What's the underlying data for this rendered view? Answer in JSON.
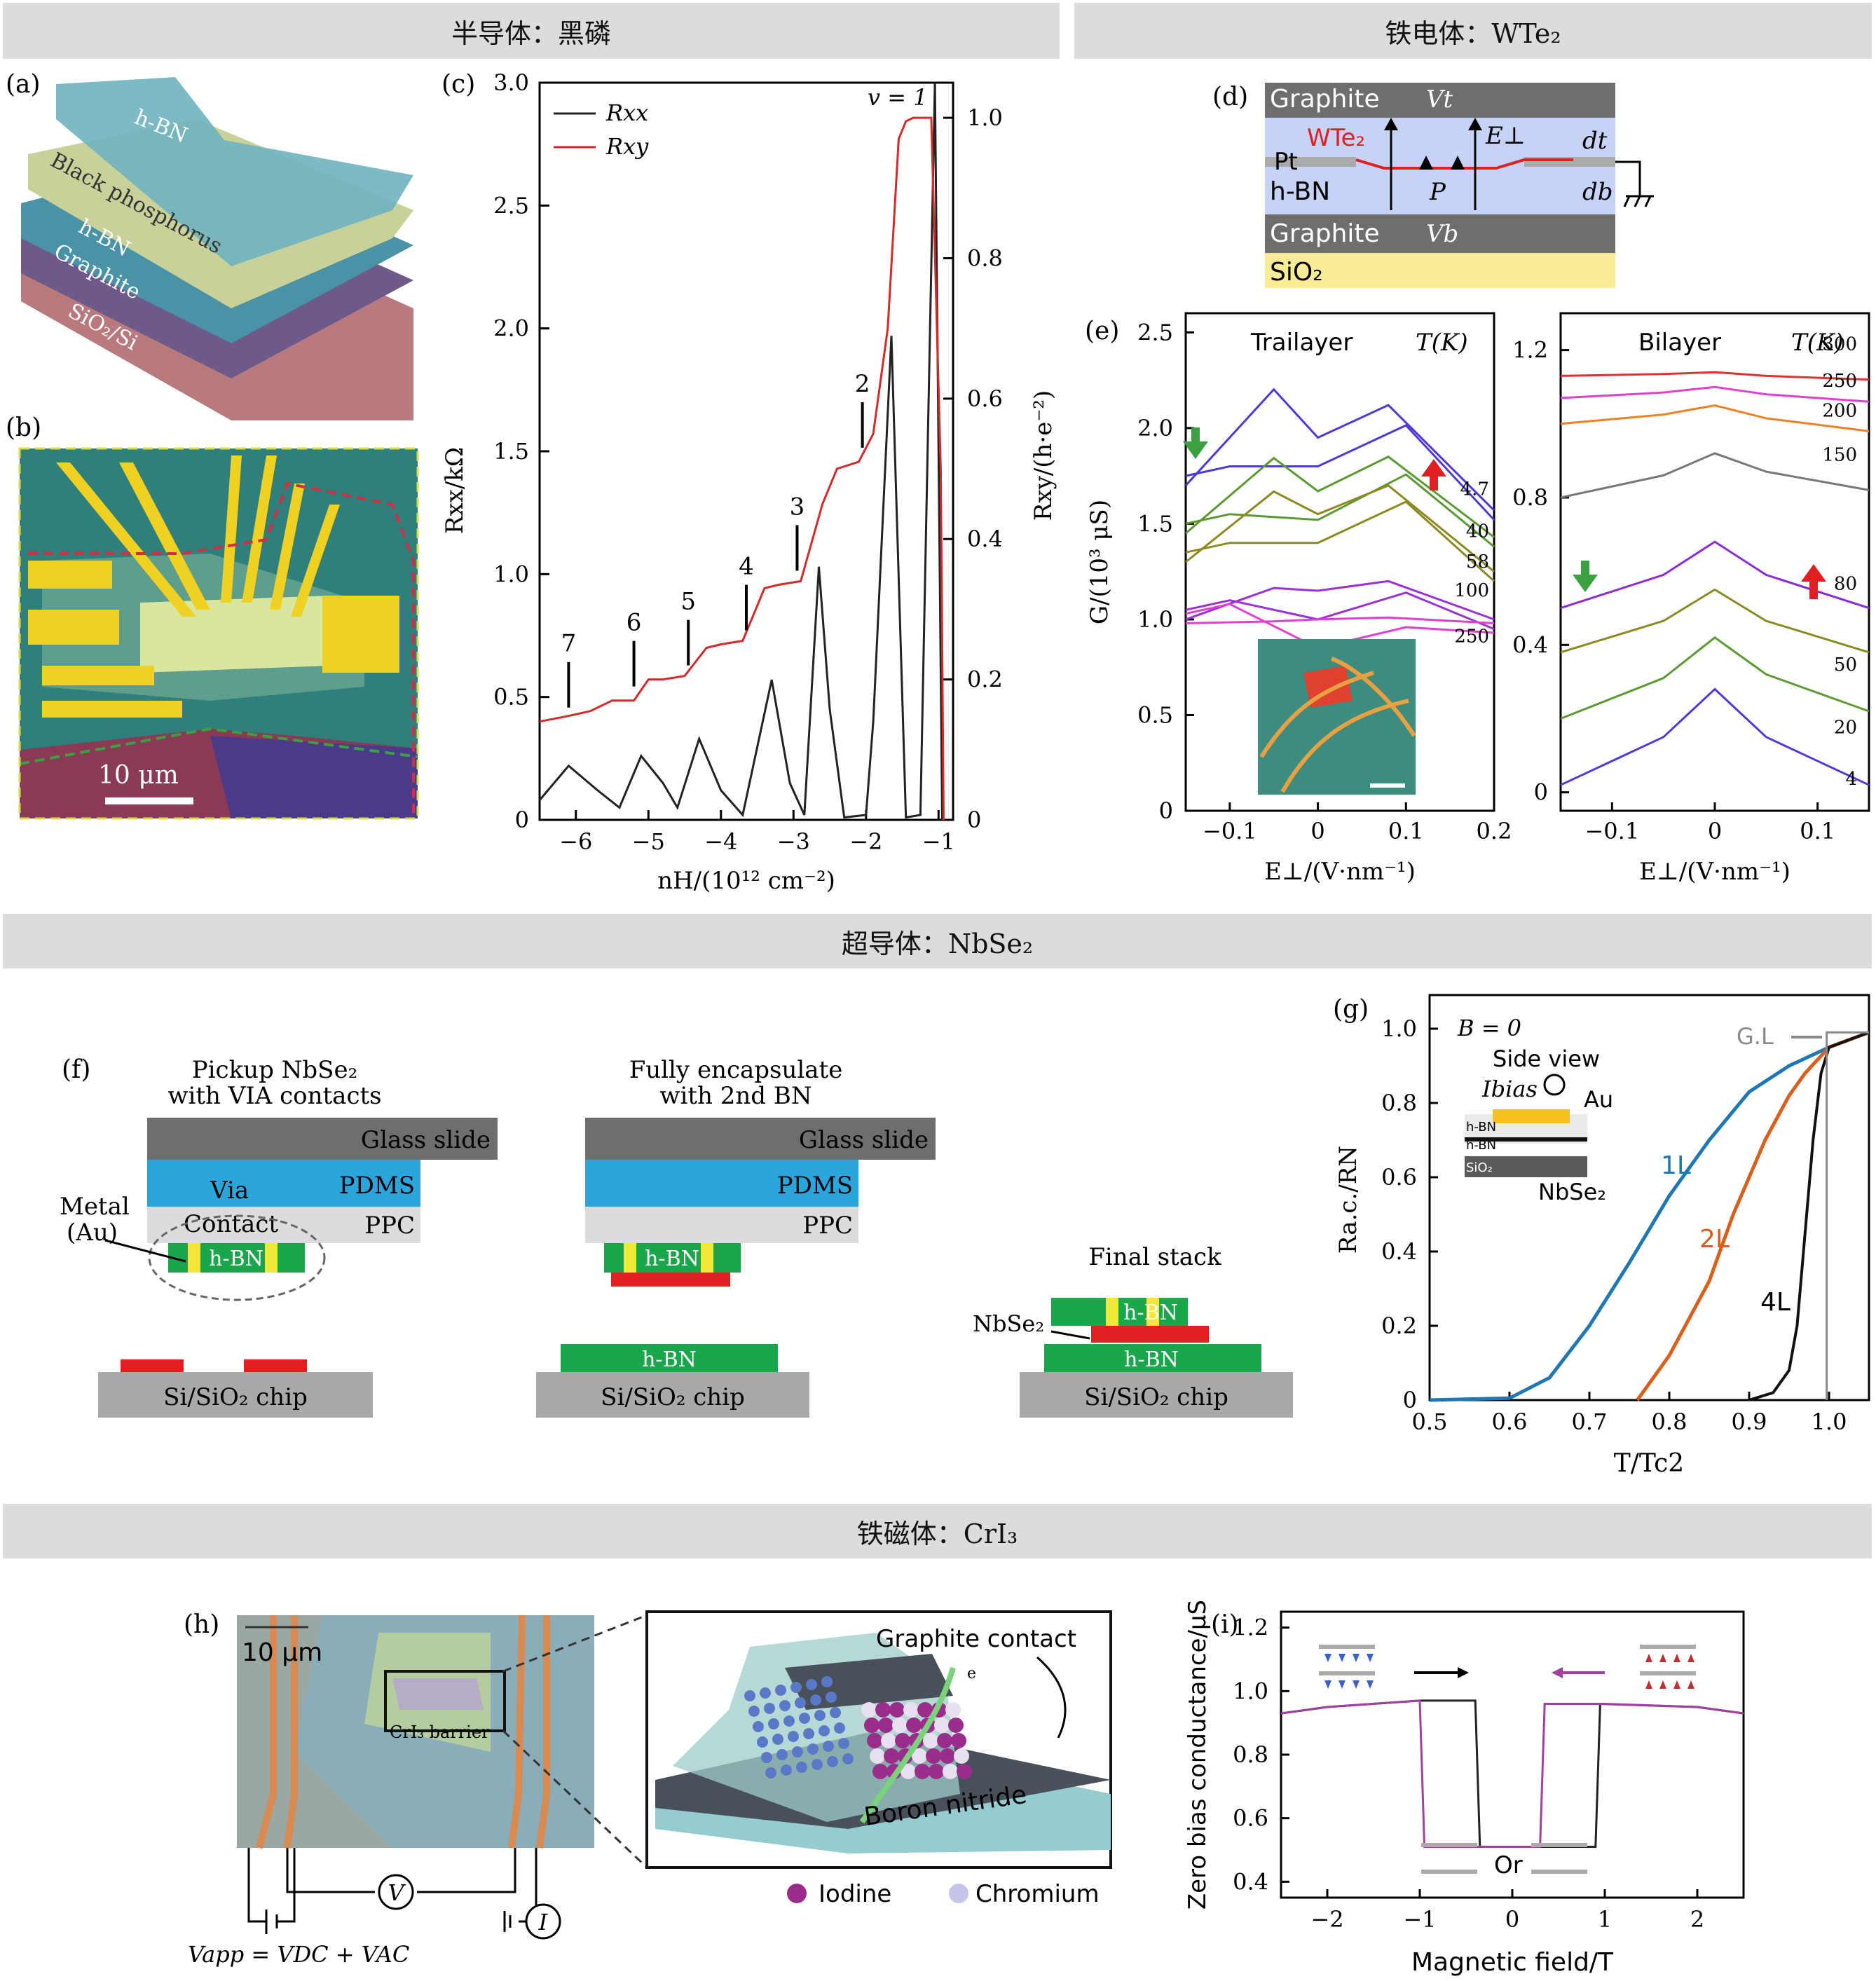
{
  "sections": {
    "s1": "半导体：黑磷",
    "s2": "铁电体：WTe₂",
    "s3": "超导体：NbSe₂",
    "s4": "铁磁体：CrI₃"
  },
  "panel_labels": {
    "a": "(a)",
    "b": "(b)",
    "c": "(c)",
    "d": "(d)",
    "e": "(e)",
    "f": "(f)",
    "g": "(g)",
    "h": "(h)",
    "i": "(i)"
  },
  "a": {
    "hbn_top": "h-BN",
    "bp": "Black phosphorus",
    "hbn_bot": "h-BN",
    "graphite": "Graphite",
    "sub": "SiO₂/Si"
  },
  "b": {
    "scale": "10 μm"
  },
  "c": {
    "leg_xx": "Rxx",
    "leg_xy": "Rxy",
    "nu": "v = 1",
    "ylabel": "Rxx/kΩ",
    "y2label": "Rxy/(h·e⁻²)",
    "xlabel": "nH/(10¹² cm⁻²)",
    "yticks": [
      "0",
      "0.5",
      "1.0",
      "1.5",
      "2.0",
      "2.5",
      "3.0"
    ],
    "y2ticks": [
      "0",
      "0.2",
      "0.4",
      "0.6",
      "0.8",
      "1.0"
    ],
    "xticks": [
      "−6",
      "−5",
      "−4",
      "−3",
      "−2",
      "−1"
    ],
    "filling": [
      "7",
      "6",
      "5",
      "4",
      "3",
      "2"
    ]
  },
  "d": {
    "graphite_t": "Graphite",
    "vt": "Vt",
    "wte2": "WTe₂",
    "eperp": "E⊥",
    "dt": "dt",
    "pt": "Pt",
    "hbn": "h-BN",
    "p": "P",
    "db": "db",
    "graphite_b": "Graphite",
    "vb": "Vb",
    "sio2": "SiO₂"
  },
  "e": {
    "tri": "Trailayer",
    "bi": "Bilayer",
    "T": "T(K)",
    "ylabel": "G/(10³ μS)",
    "xlabel": "E⊥/(V·nm⁻¹)",
    "yl": [
      "0",
      "0.5",
      "1.0",
      "1.5",
      "2.0",
      "2.5"
    ],
    "xl": [
      "−0.1",
      "0",
      "0.1",
      "0.2"
    ],
    "tl": [
      "4.7",
      "40",
      "58",
      "100",
      "250"
    ],
    "yr": [
      "0",
      "0.4",
      "0.8",
      "1.2"
    ],
    "xr": [
      "−0.1",
      "0",
      "0.1"
    ],
    "tr": [
      "300",
      "250",
      "200",
      "150",
      "80",
      "50",
      "20",
      "4"
    ]
  },
  "f": {
    "t1a": "Pickup NbSe₂",
    "t1b": "with VIA contacts",
    "t2a": "Fully encapsulate",
    "t2b": "with 2nd BN",
    "glass": "Glass slide",
    "pdms": "PDMS",
    "via": "Via",
    "ppc": "PPC",
    "contact": "Contact",
    "metal": "Metal",
    "au": "(Au)",
    "hbn": "h-BN",
    "chip": "Si/SiO₂ chip",
    "final": "Final stack",
    "nbse2": "NbSe₂"
  },
  "g": {
    "b0": "B = 0",
    "side": "Side view",
    "ibias": "Ibias",
    "au": "Au",
    "nbse2": "NbSe₂",
    "gl": "G.L",
    "l1": "1L",
    "l2": "2L",
    "l4": "4L",
    "ylabel": "Ra.c./RN",
    "xlabel": "T/Tc2",
    "yt": [
      "0",
      "0.2",
      "0.4",
      "0.6",
      "0.8",
      "1.0"
    ],
    "xt": [
      "0.5",
      "0.6",
      "0.7",
      "0.8",
      "0.9",
      "1.0"
    ],
    "ins_hbn1": "h-BN",
    "ins_hbn2": "h-BN",
    "ins_sio2": "SiO₂"
  },
  "h": {
    "scale": "10 μm",
    "cri3": "CrI₃ barrier",
    "gc": "Graphite contact",
    "bn": "Boron nitride",
    "iod": "Iodine",
    "cr": "Chromium",
    "vapp": "Vapp = VDC + VAC",
    "v": "V",
    "i": "I",
    "e": "e"
  },
  "i": {
    "ylabel": "Zero bias conductance/μS",
    "xlabel": "Magnetic field/T",
    "or": "Or",
    "yt": [
      "0.4",
      "0.6",
      "0.8",
      "1.0",
      "1.2"
    ],
    "xt": [
      "−2",
      "−1",
      "0",
      "1",
      "2"
    ]
  },
  "chart_data": [
    {
      "type": "line",
      "panel": "c",
      "xlabel": "nH/(10¹² cm⁻²)",
      "ylabel": "Rxx/kΩ",
      "y2label": "Rxy/(h·e⁻²)",
      "xlim": [
        -6.5,
        -0.8
      ],
      "ylim": [
        0,
        3.0
      ],
      "y2lim": [
        0,
        1.05
      ],
      "series": [
        {
          "name": "Rxx",
          "x": [
            -6.5,
            -6.1,
            -5.7,
            -5.4,
            -5.1,
            -4.8,
            -4.6,
            -4.3,
            -4.0,
            -3.7,
            -3.3,
            -3.05,
            -2.85,
            -2.65,
            -2.5,
            -2.3,
            -2.0,
            -1.9,
            -1.65,
            -1.45,
            -1.25,
            -1.05,
            -0.95
          ],
          "y": [
            0.08,
            0.22,
            0.12,
            0.05,
            0.26,
            0.15,
            0.05,
            0.33,
            0.12,
            0.02,
            0.57,
            0.15,
            0.02,
            1.03,
            0.45,
            0.01,
            0.02,
            0.4,
            1.97,
            0.01,
            0.02,
            3.0,
            0.0
          ]
        },
        {
          "name": "Rxy",
          "axis": "y2",
          "x": [
            -6.5,
            -6.1,
            -5.8,
            -5.5,
            -5.2,
            -5.0,
            -4.8,
            -4.5,
            -4.2,
            -4.0,
            -3.7,
            -3.4,
            -3.2,
            -2.9,
            -2.6,
            -2.4,
            -2.1,
            -1.9,
            -1.7,
            -1.55,
            -1.45,
            -1.35,
            -1.1,
            -0.97,
            -0.93
          ],
          "y": [
            0.14,
            0.148,
            0.155,
            0.17,
            0.17,
            0.2,
            0.2,
            0.205,
            0.245,
            0.25,
            0.255,
            0.33,
            0.335,
            0.34,
            0.45,
            0.5,
            0.51,
            0.55,
            0.7,
            0.97,
            0.995,
            1.0,
            1.0,
            0.5,
            0.0
          ]
        }
      ]
    },
    {
      "type": "line",
      "panel": "e-left",
      "title": "Trailayer",
      "xlabel": "E⊥/(V·nm⁻¹)",
      "ylabel": "G/(10³ μS)",
      "xlim": [
        -0.15,
        0.2
      ],
      "ylim": [
        0,
        2.6
      ],
      "series": [
        {
          "name": "4.7"
        },
        {
          "name": "40"
        },
        {
          "name": "58"
        },
        {
          "name": "100"
        },
        {
          "name": "250"
        }
      ]
    },
    {
      "type": "line",
      "panel": "e-right",
      "title": "Bilayer",
      "xlabel": "E⊥/(V·nm⁻¹)",
      "xlim": [
        -0.15,
        0.15
      ],
      "ylim": [
        0,
        1.3
      ],
      "series": [
        {
          "name": "300"
        },
        {
          "name": "250"
        },
        {
          "name": "200"
        },
        {
          "name": "150"
        },
        {
          "name": "80"
        },
        {
          "name": "50"
        },
        {
          "name": "20"
        },
        {
          "name": "4"
        }
      ]
    },
    {
      "type": "line",
      "panel": "g",
      "xlabel": "T/Tc2",
      "ylabel": "Ra.c./RN",
      "xlim": [
        0.5,
        1.05
      ],
      "ylim": [
        0,
        1.0
      ],
      "series": [
        {
          "name": "1L",
          "x": [
            0.5,
            0.6,
            0.65,
            0.7,
            0.75,
            0.8,
            0.85,
            0.9,
            0.95,
            1.0,
            1.05
          ],
          "y": [
            0,
            0.005,
            0.06,
            0.2,
            0.37,
            0.55,
            0.7,
            0.83,
            0.9,
            0.95,
            0.99
          ]
        },
        {
          "name": "2L",
          "x": [
            0.76,
            0.8,
            0.85,
            0.88,
            0.92,
            0.95,
            0.97,
            1.0,
            1.05
          ],
          "y": [
            0,
            0.12,
            0.32,
            0.5,
            0.7,
            0.82,
            0.88,
            0.95,
            0.99
          ]
        },
        {
          "name": "4L",
          "x": [
            0.9,
            0.93,
            0.95,
            0.96,
            0.97,
            0.98,
            0.99,
            1.0,
            1.05
          ],
          "y": [
            0,
            0.02,
            0.08,
            0.2,
            0.45,
            0.7,
            0.88,
            0.95,
            0.99
          ]
        }
      ]
    },
    {
      "type": "line",
      "panel": "i",
      "xlabel": "Magnetic field/T",
      "ylabel": "Zero bias conductance/μS",
      "xlim": [
        -2.5,
        2.5
      ],
      "ylim": [
        0.35,
        1.25
      ],
      "series": [
        {
          "color": "#222",
          "x": [
            -2.5,
            -2.0,
            -1.0,
            -0.4,
            -0.35,
            0.9,
            0.95,
            2.0,
            2.5
          ],
          "y": [
            0.93,
            0.95,
            0.97,
            0.97,
            0.51,
            0.51,
            0.96,
            0.95,
            0.93
          ]
        },
        {
          "color": "#a0409f",
          "x": [
            -2.5,
            -2.0,
            -1.0,
            -0.95,
            0.3,
            0.35,
            1.0,
            2.0,
            2.5
          ],
          "y": [
            0.93,
            0.95,
            0.97,
            0.51,
            0.51,
            0.96,
            0.96,
            0.95,
            0.93
          ]
        }
      ]
    }
  ]
}
